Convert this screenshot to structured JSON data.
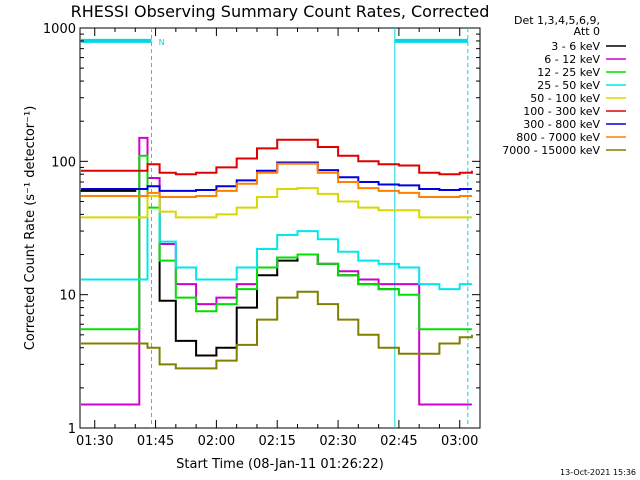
{
  "chart_data": {
    "type": "line",
    "title": "RHESSI Observing Summary Count Rates, Corrected",
    "xlabel": "Start Time (08-Jan-11 01:26:22)",
    "ylabel": "Corrected Count Rate (s⁻¹ detector⁻¹)",
    "y_scale": "log",
    "ylim": [
      1,
      1000
    ],
    "xlim": [
      "01:26:22",
      "03:05:00"
    ],
    "x_ticks": [
      "01:30",
      "01:45",
      "02:00",
      "02:15",
      "02:30",
      "02:45",
      "03:00"
    ],
    "y_ticks": [
      "1",
      "10",
      "100",
      "1000"
    ],
    "grid": false,
    "legend_position": "right",
    "legend_header": [
      "Det 1,3,4,5,6,9,",
      "Att 0"
    ],
    "series": [
      {
        "name": "3 - 6 keV",
        "color": "#000000",
        "x": [
          "01:26",
          "01:40",
          "01:43",
          "01:46",
          "01:50",
          "01:55",
          "02:00",
          "02:05",
          "02:10",
          "02:15",
          "02:20",
          "02:25",
          "02:30",
          "02:35",
          "02:40",
          "02:45",
          "02:50",
          "02:55",
          "03:00",
          "03:03"
        ],
        "y": [
          60,
          62,
          55,
          9,
          4.5,
          3.5,
          4,
          8,
          14,
          18,
          20,
          17,
          14,
          12,
          11,
          11,
          null,
          null,
          null,
          null
        ]
      },
      {
        "name": "6 - 12 keV",
        "color": "#d000d0",
        "x": [
          "01:26",
          "01:40",
          "01:41",
          "01:43",
          "01:46",
          "01:50",
          "01:55",
          "02:00",
          "02:05",
          "02:10",
          "02:15",
          "02:20",
          "02:25",
          "02:30",
          "02:35",
          "02:40",
          "02:45",
          "02:50",
          "02:55",
          "03:00",
          "03:03"
        ],
        "y": [
          1.5,
          1.5,
          150,
          75,
          24,
          12,
          8.5,
          9.5,
          12,
          16,
          19,
          20,
          17,
          15,
          13,
          12,
          12,
          1.5,
          1.5,
          1.5,
          1.5
        ]
      },
      {
        "name": "12 - 25 keV",
        "color": "#00e000",
        "x": [
          "01:26",
          "01:40",
          "01:41",
          "01:43",
          "01:46",
          "01:50",
          "01:55",
          "02:00",
          "02:05",
          "02:10",
          "02:15",
          "02:20",
          "02:25",
          "02:30",
          "02:35",
          "02:40",
          "02:45",
          "02:50",
          "02:55",
          "03:00",
          "03:03"
        ],
        "y": [
          5.5,
          5.5,
          110,
          45,
          18,
          9.5,
          7.5,
          8.5,
          11,
          16,
          19,
          20,
          17,
          14,
          12,
          11,
          10,
          5.5,
          5.5,
          5.5,
          5.5
        ]
      },
      {
        "name": "25 - 50 keV",
        "color": "#00e8e8",
        "x": [
          "01:26",
          "01:35",
          "01:40",
          "01:43",
          "01:46",
          "01:50",
          "01:55",
          "02:00",
          "02:05",
          "02:10",
          "02:15",
          "02:20",
          "02:25",
          "02:30",
          "02:35",
          "02:40",
          "02:45",
          "02:50",
          "02:55",
          "03:00",
          "03:03"
        ],
        "y": [
          13,
          13,
          13,
          55,
          25,
          16,
          13,
          13,
          16,
          22,
          28,
          30,
          26,
          21,
          18,
          17,
          16,
          12,
          11,
          12,
          12
        ]
      },
      {
        "name": "50 - 100 keV",
        "color": "#d8d800",
        "x": [
          "01:26",
          "01:40",
          "01:43",
          "01:46",
          "01:50",
          "01:55",
          "02:00",
          "02:05",
          "02:10",
          "02:15",
          "02:20",
          "02:25",
          "02:30",
          "02:35",
          "02:40",
          "02:45",
          "02:50",
          "02:55",
          "03:00",
          "03:03"
        ],
        "y": [
          38,
          38,
          55,
          42,
          38,
          38,
          40,
          45,
          54,
          62,
          63,
          57,
          50,
          45,
          43,
          43,
          38,
          38,
          38,
          38
        ]
      },
      {
        "name": "100 - 300 keV",
        "color": "#e00000",
        "x": [
          "01:26",
          "01:40",
          "01:43",
          "01:46",
          "01:50",
          "01:55",
          "02:00",
          "02:05",
          "02:10",
          "02:15",
          "02:20",
          "02:25",
          "02:30",
          "02:35",
          "02:40",
          "02:45",
          "02:50",
          "02:55",
          "03:00",
          "03:03"
        ],
        "y": [
          85,
          85,
          95,
          82,
          80,
          82,
          90,
          105,
          125,
          145,
          145,
          128,
          110,
          100,
          95,
          93,
          82,
          80,
          82,
          85
        ]
      },
      {
        "name": "300 - 800 keV",
        "color": "#0000e0",
        "x": [
          "01:26",
          "01:40",
          "01:43",
          "01:46",
          "01:50",
          "01:55",
          "02:00",
          "02:05",
          "02:10",
          "02:15",
          "02:20",
          "02:25",
          "02:30",
          "02:35",
          "02:40",
          "02:45",
          "02:50",
          "02:55",
          "03:00",
          "03:03"
        ],
        "y": [
          62,
          62,
          65,
          60,
          60,
          61,
          65,
          72,
          85,
          98,
          98,
          86,
          76,
          70,
          67,
          66,
          62,
          61,
          62,
          62
        ]
      },
      {
        "name": "800 - 7000 keV",
        "color": "#ff8000",
        "x": [
          "01:26",
          "01:40",
          "01:43",
          "01:46",
          "01:50",
          "01:55",
          "02:00",
          "02:05",
          "02:10",
          "02:15",
          "02:20",
          "02:25",
          "02:30",
          "02:35",
          "02:40",
          "02:45",
          "02:50",
          "02:55",
          "03:00",
          "03:03"
        ],
        "y": [
          55,
          55,
          58,
          54,
          54,
          55,
          60,
          68,
          82,
          96,
          96,
          82,
          70,
          63,
          60,
          58,
          54,
          54,
          55,
          55
        ]
      },
      {
        "name": "7000 - 15000 keV",
        "color": "#808000",
        "x": [
          "01:26",
          "01:40",
          "01:43",
          "01:46",
          "01:50",
          "01:55",
          "02:00",
          "02:05",
          "02:10",
          "02:15",
          "02:20",
          "02:25",
          "02:30",
          "02:35",
          "02:40",
          "02:45",
          "02:50",
          "02:55",
          "03:00",
          "03:03"
        ],
        "y": [
          4.3,
          4.3,
          4.0,
          3.0,
          2.8,
          2.8,
          3.2,
          4.2,
          6.5,
          9.5,
          10.5,
          8.5,
          6.5,
          5.0,
          4.0,
          3.6,
          3.6,
          4.3,
          4.8,
          5.0
        ]
      }
    ],
    "annotations": [
      {
        "type": "span-bar",
        "color": "#00d8e8",
        "x_start": "01:26",
        "x_end": "01:44",
        "y": 800
      },
      {
        "type": "span-bar",
        "color": "#00d8e8",
        "x_start": "02:44",
        "x_end": "03:02",
        "y": 800
      },
      {
        "type": "vline-dashed",
        "color": "#00d8e8",
        "x": "01:44"
      },
      {
        "type": "vline-dashed",
        "color": "#00d8e8",
        "x": "03:02"
      },
      {
        "type": "vline-solid",
        "color": "#00d8e8",
        "x": "02:44"
      },
      {
        "type": "label",
        "text": "N",
        "color": "#00d8e8",
        "x": "01:45",
        "y": 800
      }
    ],
    "date_stamp": "13-Oct-2021 15:36"
  }
}
